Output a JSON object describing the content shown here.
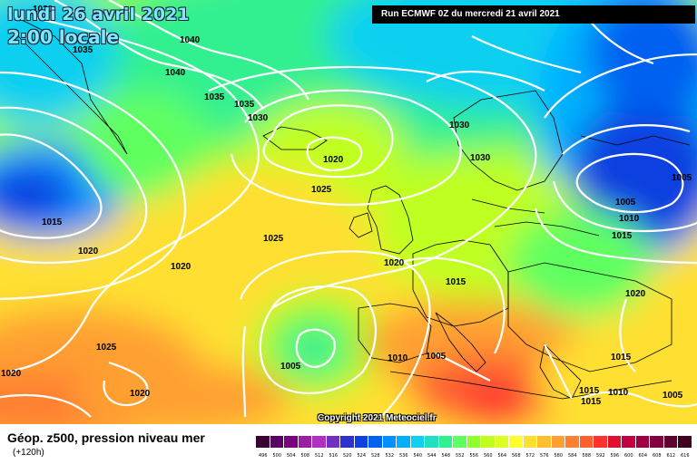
{
  "header": {
    "date": "lundi 26 avril 2021",
    "time": "2:00 locale",
    "run": "Run ECMWF 0Z du mercredi 21 avril 2021"
  },
  "footer": {
    "title": "Géop. z500, pression niveau mer",
    "subtitle": "(+120h)",
    "copyright": "Copyright 2021 Meteociel.fr"
  },
  "legend": {
    "values": [
      "496",
      "500",
      "504",
      "508",
      "512",
      "516",
      "520",
      "524",
      "528",
      "532",
      "536",
      "540",
      "544",
      "548",
      "552",
      "556",
      "560",
      "564",
      "568",
      "572",
      "576",
      "580",
      "584",
      "588",
      "592",
      "596",
      "600",
      "604",
      "608",
      "612",
      "616"
    ],
    "colors": [
      "#3a0030",
      "#5a0060",
      "#7a0080",
      "#9a20a0",
      "#b030c0",
      "#7030c0",
      "#3030d0",
      "#1040e0",
      "#0060f0",
      "#0090ff",
      "#00b0ff",
      "#10d0f0",
      "#20e0c0",
      "#30f090",
      "#60ff60",
      "#90ff30",
      "#c0ff20",
      "#e0ff20",
      "#ffff30",
      "#ffe030",
      "#ffc030",
      "#ffa030",
      "#ff8030",
      "#ff6030",
      "#ff3030",
      "#e01030",
      "#c00040",
      "#a00040",
      "#800040",
      "#600030",
      "#400020"
    ]
  },
  "isobar_labels": [
    {
      "text": "1030"
    },
    {
      "text": "1035"
    },
    {
      "text": "1040"
    },
    {
      "text": "1040"
    },
    {
      "text": "1035"
    },
    {
      "text": "1035"
    },
    {
      "text": "1030"
    },
    {
      "text": "1020"
    },
    {
      "text": "1025"
    },
    {
      "text": "1030"
    },
    {
      "text": "1030"
    },
    {
      "text": "1015"
    },
    {
      "text": "1020"
    },
    {
      "text": "1020"
    },
    {
      "text": "1025"
    },
    {
      "text": "1020"
    },
    {
      "text": "1015"
    },
    {
      "text": "1025"
    },
    {
      "text": "1020"
    },
    {
      "text": "1020"
    },
    {
      "text": "1005"
    },
    {
      "text": "1010"
    },
    {
      "text": "1005"
    },
    {
      "text": "1005"
    },
    {
      "text": "1010"
    },
    {
      "text": "1015"
    },
    {
      "text": "1005"
    },
    {
      "text": "1020"
    },
    {
      "text": "1015"
    },
    {
      "text": "1015"
    },
    {
      "text": "1015"
    },
    {
      "text": "1010"
    },
    {
      "text": "1005"
    }
  ]
}
